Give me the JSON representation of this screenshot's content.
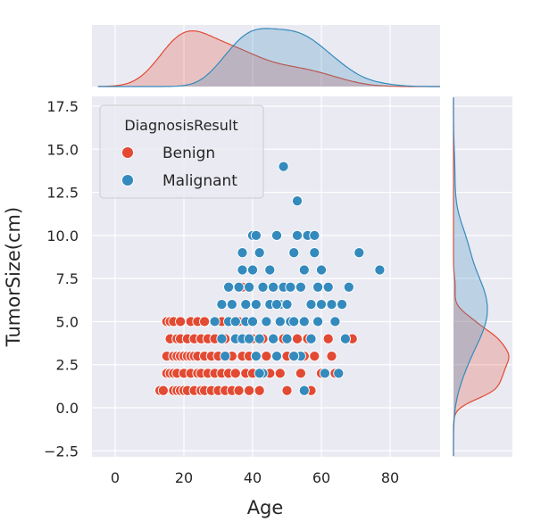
{
  "chart_data": {
    "type": "scatter",
    "subtype": "jointplot",
    "title": "",
    "xlabel": "Age",
    "ylabel": "TumorSize(cm)",
    "xlim": [
      -5,
      95
    ],
    "ylim": [
      -3,
      18
    ],
    "xticks": [
      "0",
      "20",
      "40",
      "60",
      "80"
    ],
    "yticks": [
      "−2.5",
      "0.0",
      "2.5",
      "5.0",
      "7.5",
      "10.0",
      "12.5",
      "15.0",
      "17.5"
    ],
    "grid": true,
    "legend": {
      "title": "DiagnosisResult",
      "placement": "top-left",
      "entries": [
        "Benign",
        "Malignant"
      ]
    },
    "marginals": {
      "top": "kde of Age per DiagnosisResult",
      "right": "kde of TumorSize(cm) per DiagnosisResult"
    },
    "series": [
      {
        "name": "Benign",
        "color": "#e24a33",
        "x": [
          13,
          14,
          15,
          15,
          15,
          16,
          16,
          16,
          17,
          17,
          17,
          17,
          18,
          18,
          18,
          18,
          19,
          19,
          19,
          19,
          20,
          20,
          20,
          21,
          21,
          21,
          22,
          22,
          22,
          23,
          23,
          23,
          24,
          24,
          24,
          25,
          25,
          25,
          26,
          26,
          26,
          27,
          27,
          28,
          28,
          29,
          29,
          30,
          30,
          31,
          31,
          32,
          32,
          33,
          33,
          34,
          34,
          35,
          35,
          36,
          36,
          37,
          38,
          38,
          39,
          39,
          40,
          40,
          41,
          42,
          43,
          44,
          45,
          46,
          47,
          48,
          49,
          50,
          50,
          52,
          53,
          54,
          55,
          56,
          57,
          58,
          60,
          62,
          63,
          64,
          69,
          37
        ],
        "y": [
          1,
          1,
          3,
          5,
          2,
          2,
          4,
          5,
          1,
          3,
          5,
          2,
          1,
          2,
          3,
          4,
          3,
          5,
          1,
          4,
          1,
          2,
          3,
          1,
          3,
          4,
          2,
          3,
          5,
          1,
          3,
          4,
          2,
          3,
          5,
          1,
          4,
          2,
          3,
          5,
          1,
          2,
          4,
          1,
          3,
          2,
          4,
          1,
          3,
          2,
          5,
          1,
          4,
          3,
          2,
          1,
          3,
          4,
          2,
          1,
          5,
          3,
          2,
          4,
          1,
          3,
          2,
          4,
          3,
          1,
          4,
          3,
          2,
          4,
          3,
          2,
          4,
          3,
          1,
          3,
          4,
          2,
          3,
          4,
          1,
          3,
          2,
          4,
          3,
          2,
          4,
          7
        ]
      },
      {
        "name": "Malignant",
        "color": "#348abd",
        "x": [
          29,
          31,
          31,
          32,
          33,
          33,
          34,
          35,
          35,
          36,
          37,
          37,
          37,
          38,
          38,
          39,
          39,
          40,
          40,
          40,
          41,
          41,
          41,
          42,
          42,
          43,
          43,
          44,
          45,
          45,
          46,
          46,
          47,
          47,
          48,
          48,
          49,
          49,
          50,
          50,
          51,
          51,
          52,
          52,
          53,
          53,
          54,
          54,
          55,
          55,
          56,
          57,
          57,
          58,
          58,
          59,
          59,
          60,
          60,
          61,
          62,
          63,
          64,
          65,
          66,
          67,
          68,
          71,
          77,
          42,
          47,
          52,
          55
        ],
        "y": [
          5,
          4,
          6,
          3,
          7,
          5,
          6,
          4,
          5,
          7,
          8,
          9,
          4,
          6,
          5,
          7,
          4,
          8,
          10,
          5,
          6,
          3,
          10,
          4,
          9,
          7,
          2,
          5,
          6,
          8,
          4,
          7,
          10,
          3,
          5,
          6,
          14,
          7,
          4,
          6,
          5,
          7,
          9,
          5,
          10,
          12,
          7,
          3,
          5,
          8,
          10,
          4,
          6,
          9,
          10,
          5,
          7,
          6,
          8,
          2,
          7,
          6,
          5,
          2,
          6,
          4,
          7,
          9,
          8,
          2,
          6,
          3,
          1
        ]
      }
    ]
  }
}
